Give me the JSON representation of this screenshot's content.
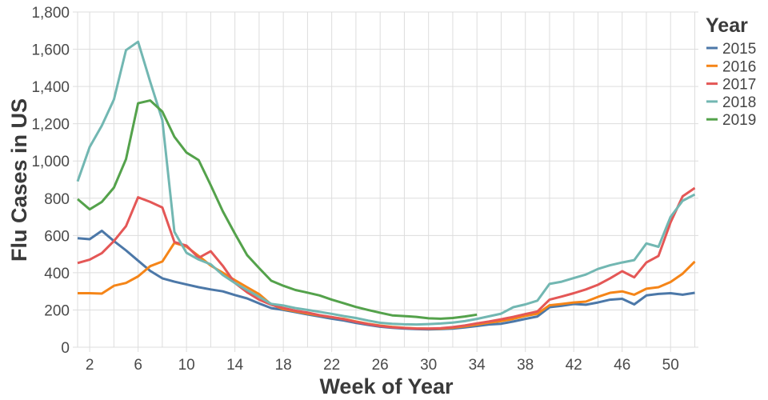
{
  "chart_data": {
    "type": "line",
    "x_axis": {
      "title": "Week of Year",
      "domain": [
        1,
        52.3
      ],
      "tick_labels": [
        2,
        6,
        10,
        14,
        18,
        22,
        26,
        30,
        34,
        38,
        42,
        46,
        50
      ],
      "gridline_step_weeks": 2,
      "grid": true
    },
    "y_axis": {
      "title": "Flu Cases in US",
      "domain": [
        0,
        1800
      ],
      "ticks": [
        0,
        200,
        400,
        600,
        800,
        1000,
        1200,
        1400,
        1600,
        1800
      ],
      "tick_label_format": "thousands-comma",
      "grid": true
    },
    "legend": {
      "title": "Year",
      "position": "top-right",
      "entries": [
        "2015",
        "2016",
        "2017",
        "2018",
        "2019"
      ]
    },
    "style": {
      "grid_color": "#dddddd",
      "axis_line_color": "#dddddd",
      "line_width": 3,
      "background": "#ffffff"
    },
    "series": [
      {
        "name": "2015",
        "color": "#4c78a8",
        "start_week": 1,
        "values": [
          585,
          580,
          625,
          570,
          520,
          465,
          410,
          370,
          352,
          337,
          322,
          310,
          300,
          280,
          262,
          235,
          210,
          200,
          188,
          176,
          165,
          153,
          143,
          130,
          120,
          110,
          104,
          100,
          97,
          96,
          97,
          100,
          106,
          114,
          122,
          126,
          138,
          152,
          165,
          215,
          222,
          232,
          228,
          240,
          255,
          260,
          230,
          278,
          286,
          290,
          282,
          292
        ]
      },
      {
        "name": "2016",
        "color": "#f58518",
        "start_week": 1,
        "values": [
          290,
          290,
          288,
          330,
          345,
          380,
          435,
          460,
          560,
          540,
          490,
          438,
          400,
          360,
          322,
          285,
          230,
          205,
          193,
          181,
          170,
          161,
          152,
          138,
          126,
          116,
          109,
          104,
          101,
          100,
          100,
          105,
          112,
          122,
          132,
          140,
          152,
          168,
          180,
          225,
          232,
          240,
          245,
          270,
          292,
          300,
          282,
          314,
          322,
          350,
          395,
          460
        ]
      },
      {
        "name": "2017",
        "color": "#e45756",
        "start_week": 1,
        "values": [
          452,
          470,
          505,
          570,
          650,
          805,
          780,
          750,
          565,
          545,
          480,
          515,
          437,
          345,
          295,
          255,
          228,
          210,
          196,
          186,
          172,
          162,
          150,
          136,
          124,
          114,
          107,
          103,
          100,
          100,
          102,
          108,
          117,
          128,
          138,
          150,
          163,
          178,
          192,
          255,
          272,
          290,
          310,
          335,
          370,
          408,
          375,
          455,
          490,
          670,
          810,
          855
        ]
      },
      {
        "name": "2018",
        "color": "#72b7b2",
        "start_week": 1,
        "values": [
          890,
          1075,
          1190,
          1330,
          1595,
          1640,
          1425,
          1220,
          620,
          507,
          471,
          445,
          388,
          345,
          307,
          270,
          233,
          224,
          210,
          200,
          190,
          179,
          167,
          157,
          143,
          131,
          126,
          123,
          122,
          124,
          127,
          132,
          140,
          152,
          166,
          180,
          215,
          230,
          250,
          340,
          352,
          371,
          390,
          420,
          440,
          455,
          468,
          557,
          539,
          700,
          786,
          820
        ]
      },
      {
        "name": "2019",
        "color": "#54a24b",
        "start_week": 1,
        "values": [
          795,
          740,
          780,
          857,
          1010,
          1310,
          1325,
          1265,
          1130,
          1045,
          1005,
          870,
          730,
          610,
          495,
          425,
          357,
          330,
          307,
          293,
          278,
          255,
          236,
          216,
          200,
          185,
          171,
          167,
          163,
          155,
          153,
          157,
          165,
          175
        ]
      }
    ]
  }
}
